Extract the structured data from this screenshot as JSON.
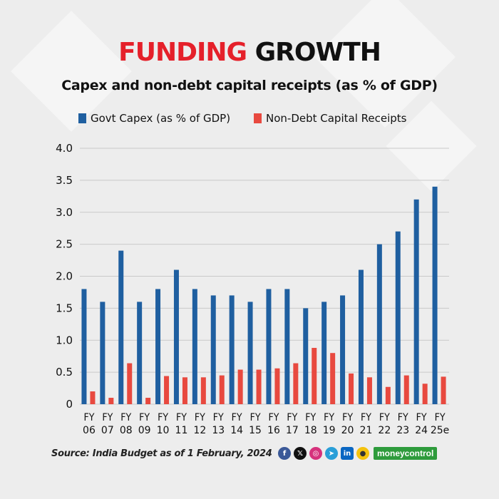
{
  "title": {
    "part1": "FUNDING",
    "part2": "GROWTH"
  },
  "subtitle": "Capex and non-debt capital receipts (as % of GDP)",
  "legend": [
    {
      "label": "Govt Capex (as % of GDP)",
      "color": "#1f5fa0"
    },
    {
      "label": "Non-Debt Capital Receipts",
      "color": "#e8493f"
    }
  ],
  "source": "Source: India Budget as of  1 February, 2024",
  "social_icons": [
    "facebook-icon",
    "x-icon",
    "instagram-icon",
    "telegram-icon",
    "linkedin-icon",
    "koo-icon"
  ],
  "brand": "moneycontrol",
  "chart_data": {
    "type": "bar",
    "categories": [
      [
        "FY",
        "06"
      ],
      [
        "FY",
        "07"
      ],
      [
        "FY",
        "08"
      ],
      [
        "FY",
        "09"
      ],
      [
        "FY",
        "10"
      ],
      [
        "FY",
        "11"
      ],
      [
        "FY",
        "12"
      ],
      [
        "FY",
        "13"
      ],
      [
        "FY",
        "14"
      ],
      [
        "FY",
        "15"
      ],
      [
        "FY",
        "16"
      ],
      [
        "FY",
        "17"
      ],
      [
        "FY",
        "18"
      ],
      [
        "FY",
        "19"
      ],
      [
        "FY",
        "20"
      ],
      [
        "FY",
        "21"
      ],
      [
        "FY",
        "22"
      ],
      [
        "FY",
        "23"
      ],
      [
        "FY",
        "24"
      ],
      [
        "FY",
        "25e"
      ]
    ],
    "series": [
      {
        "name": "Govt Capex (as % of GDP)",
        "color": "#1f5fa0",
        "values": [
          1.8,
          1.6,
          2.4,
          1.6,
          1.8,
          2.1,
          1.8,
          1.7,
          1.7,
          1.6,
          1.8,
          1.8,
          1.5,
          1.6,
          1.7,
          2.1,
          2.5,
          2.7,
          3.2,
          3.4
        ]
      },
      {
        "name": "Non-Debt Capital Receipts",
        "color": "#e8493f",
        "values": [
          0.2,
          0.1,
          0.64,
          0.1,
          0.44,
          0.42,
          0.42,
          0.45,
          0.54,
          0.54,
          0.56,
          0.64,
          0.88,
          0.8,
          0.48,
          0.42,
          0.27,
          0.45,
          0.32,
          0.43
        ]
      }
    ],
    "y_ticks": [
      "0",
      "0.5",
      "1.0",
      "1.5",
      "2.0",
      "2.5",
      "3.0",
      "3.5",
      "4.0"
    ],
    "ylim": [
      0,
      4.0
    ],
    "grid": true
  }
}
